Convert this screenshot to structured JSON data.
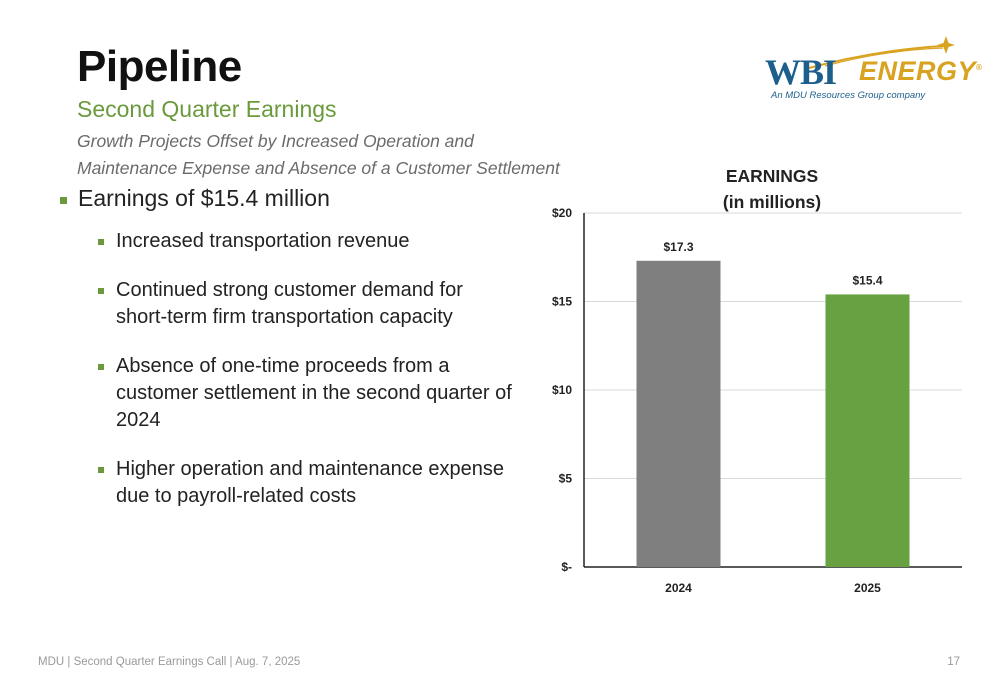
{
  "header": {
    "title": "Pipeline",
    "subtitle": "Second Quarter Earnings",
    "tagline_line1": "Growth Projects Offset by Increased Operation and",
    "tagline_line2": "Maintenance Expense and Absence of a Customer Settlement"
  },
  "logo": {
    "wbi": "WBI",
    "energy": "ENERGY",
    "registered": "®",
    "tagline": "An MDU Resources Group company",
    "colors": {
      "blue": "#1c5f8c",
      "gold": "#d9a321"
    }
  },
  "bullets": {
    "main": "Earnings of $15.4 million",
    "sub": [
      {
        "line1": "Increased transportation revenue",
        "line2": "",
        "line3": ""
      },
      {
        "line1": "Continued strong customer demand for",
        "line2": "short-term firm transportation capacity",
        "line3": ""
      },
      {
        "line1": "Absence of one-time proceeds from a",
        "line2": "customer settlement in the second quarter of",
        "line3": "2024"
      },
      {
        "line1": "Higher operation and maintenance expense",
        "line2": "due to payroll-related costs",
        "line3": ""
      }
    ]
  },
  "chart_data": {
    "type": "bar",
    "title_line1": "EARNINGS",
    "title_line2": "(in millions)",
    "categories": [
      "2024",
      "2025"
    ],
    "values": [
      17.3,
      15.4
    ],
    "data_labels": [
      "$17.3",
      "$15.4"
    ],
    "bar_colors": [
      "#7f7f7f",
      "#67a142"
    ],
    "ylim": [
      0,
      20
    ],
    "yticks": [
      0,
      5,
      10,
      15,
      20
    ],
    "ytick_labels": [
      "$-",
      "$5",
      "$10",
      "$15",
      "$20"
    ],
    "grid": true,
    "legend": "none"
  },
  "footer": {
    "text": "MDU  |  Second Quarter Earnings Call  |  Aug. 7, 2025",
    "page": "17"
  }
}
